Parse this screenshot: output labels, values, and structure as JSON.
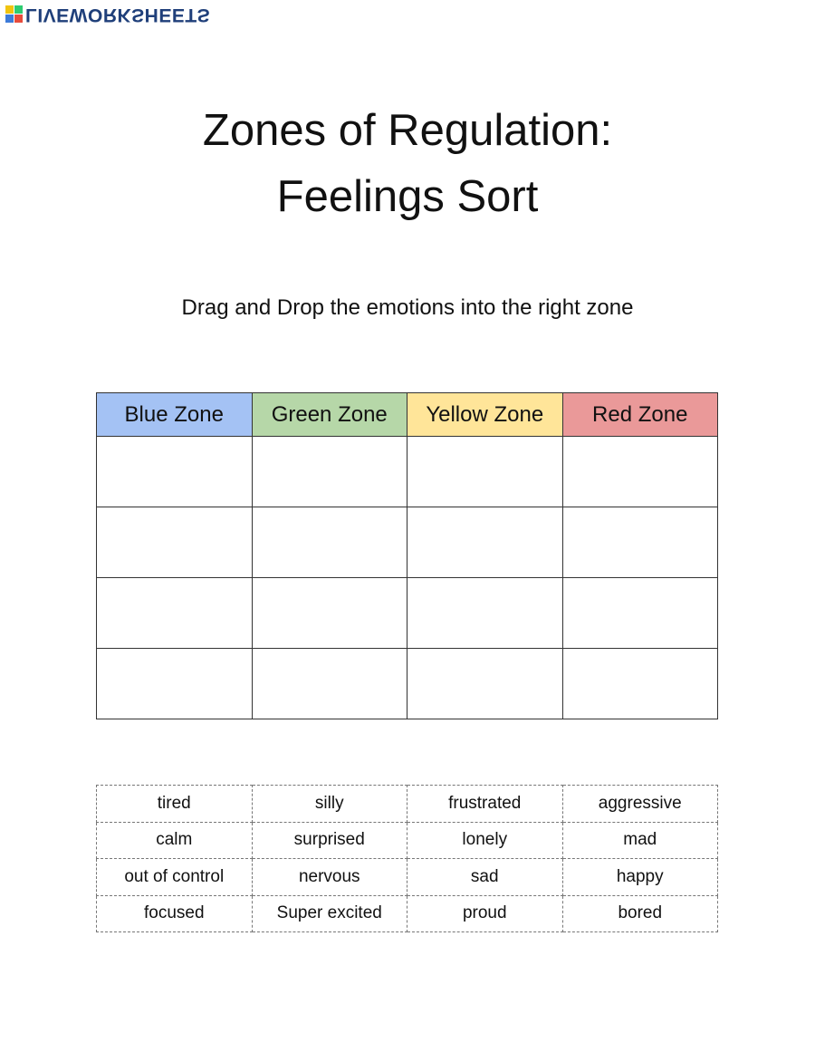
{
  "logo": {
    "text": "LIVEWORKSHEETS",
    "colors": [
      "#3d7bd9",
      "#e74c3c",
      "#f1c40f",
      "#2ecc71"
    ]
  },
  "title": [
    "Zones of Regulation:",
    "Feelings Sort"
  ],
  "instructions": "Drag and Drop the emotions into the right zone",
  "zones": [
    {
      "label": "Blue Zone",
      "color": "#a4c2f4"
    },
    {
      "label": "Green Zone",
      "color": "#b6d7a8"
    },
    {
      "label": "Yellow Zone",
      "color": "#ffe599"
    },
    {
      "label": "Red Zone",
      "color": "#ea9999"
    }
  ],
  "drop_rows": 4,
  "words": [
    [
      "tired",
      "silly",
      "frustrated",
      "aggressive"
    ],
    [
      "calm",
      "surprised",
      "lonely",
      "mad"
    ],
    [
      "out of control",
      "nervous",
      "sad",
      "happy"
    ],
    [
      "focused",
      "Super excited",
      "proud",
      "bored"
    ]
  ]
}
